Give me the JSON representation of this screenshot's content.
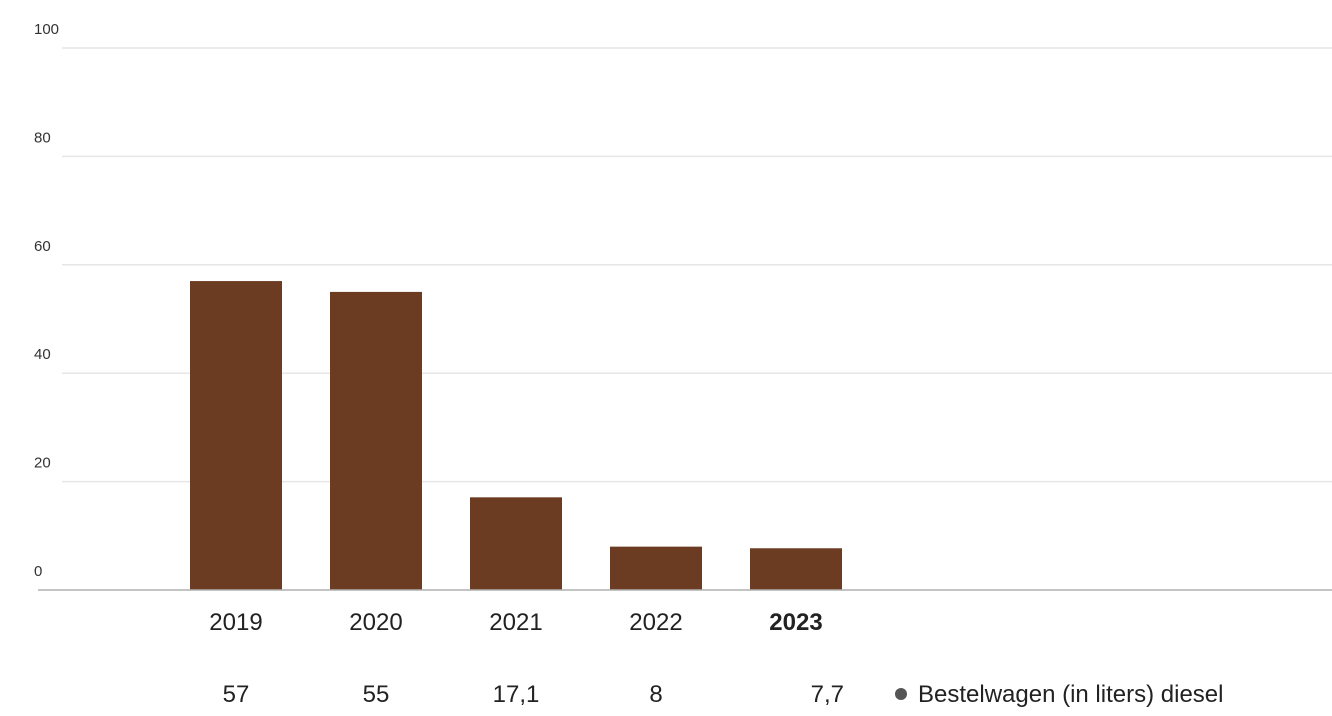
{
  "chart_data": {
    "type": "bar",
    "categories": [
      "2019",
      "2020",
      "2021",
      "2022",
      "2023"
    ],
    "highlighted_category": "2023",
    "series": [
      {
        "name": "Bestelwagen (in liters) diesel",
        "color": "#6b3b22",
        "values": [
          57,
          55,
          17.1,
          8,
          7.7
        ],
        "value_labels": [
          "57",
          "55",
          "17,1",
          "8",
          "7,7"
        ]
      }
    ],
    "y_ticks": [
      "0",
      "20",
      "40",
      "60",
      "80",
      "100"
    ],
    "ylim": [
      0,
      100
    ],
    "grid": true,
    "grid_color": "#e6e6e6",
    "axis_color": "#b0b0b0",
    "legend": {
      "position": "bottom-right",
      "marker_color": "#555555"
    }
  }
}
